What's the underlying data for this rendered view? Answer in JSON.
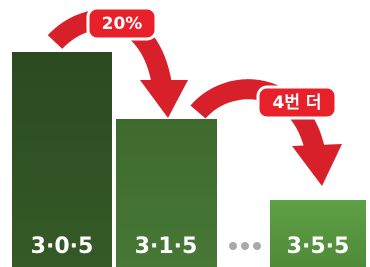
{
  "bars": [
    {
      "label": "3·0·5"
    },
    {
      "label": "3·1·5"
    },
    {
      "label": "3·5·5"
    }
  ],
  "arrows": [
    {
      "label": "20%"
    },
    {
      "label": "4번 더"
    }
  ]
}
